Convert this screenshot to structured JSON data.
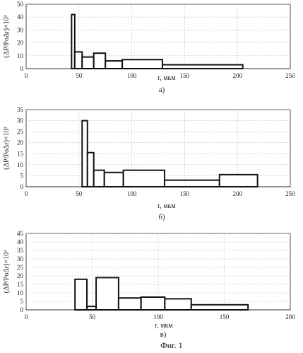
{
  "figure_caption": "Фиг. 1",
  "chart_data": [
    {
      "type": "bar",
      "sublabel": "а)",
      "xlabel": "r, мкм",
      "ylabel": "(ΔP/PoΔr)×10³",
      "xlim": [
        0,
        250
      ],
      "ylim": [
        0,
        50
      ],
      "xticks": [
        0,
        50,
        100,
        150,
        200,
        250
      ],
      "yticks": [
        0,
        10,
        20,
        30,
        40,
        50
      ],
      "grid": true,
      "xlabel_inside": true,
      "bins": [
        {
          "x0": 43,
          "x1": 46,
          "value": 42
        },
        {
          "x0": 46,
          "x1": 53,
          "value": 13
        },
        {
          "x0": 53,
          "x1": 64,
          "value": 9
        },
        {
          "x0": 64,
          "x1": 75,
          "value": 12
        },
        {
          "x0": 75,
          "x1": 91,
          "value": 6
        },
        {
          "x0": 91,
          "x1": 129,
          "value": 7
        },
        {
          "x0": 129,
          "x1": 205,
          "value": 3
        }
      ]
    },
    {
      "type": "bar",
      "sublabel": "б)",
      "xlabel": "r, мкм",
      "ylabel": "(ΔP/PoΔr)×10³",
      "xlim": [
        0,
        250
      ],
      "ylim": [
        0,
        35
      ],
      "xticks": [
        0,
        50,
        100,
        150,
        200,
        250
      ],
      "yticks": [
        0,
        5,
        10,
        15,
        20,
        25,
        30,
        35
      ],
      "grid": true,
      "xlabel_inside": false,
      "bins": [
        {
          "x0": 53,
          "x1": 58,
          "value": 30
        },
        {
          "x0": 58,
          "x1": 64,
          "value": 15.5
        },
        {
          "x0": 64,
          "x1": 74,
          "value": 7.5
        },
        {
          "x0": 74,
          "x1": 92,
          "value": 6.5
        },
        {
          "x0": 92,
          "x1": 131,
          "value": 7.5
        },
        {
          "x0": 131,
          "x1": 183,
          "value": 3
        },
        {
          "x0": 183,
          "x1": 219,
          "value": 5.5
        }
      ]
    },
    {
      "type": "bar",
      "sublabel": "в)",
      "xlabel": "r, мкм",
      "ylabel": "(ΔP/PoΔr)×10³",
      "xlim": [
        0,
        200
      ],
      "ylim": [
        0,
        45
      ],
      "xticks": [
        0,
        50,
        100,
        150,
        200
      ],
      "yticks": [
        0,
        5,
        10,
        15,
        20,
        25,
        30,
        35,
        40,
        45
      ],
      "grid": true,
      "xlabel_inside": false,
      "bins": [
        {
          "x0": 37,
          "x1": 46,
          "value": 18
        },
        {
          "x0": 46,
          "x1": 53,
          "value": 2
        },
        {
          "x0": 53,
          "x1": 70,
          "value": 19
        },
        {
          "x0": 70,
          "x1": 87,
          "value": 7
        },
        {
          "x0": 87,
          "x1": 105,
          "value": 7.5
        },
        {
          "x0": 105,
          "x1": 125,
          "value": 6.5
        },
        {
          "x0": 125,
          "x1": 168,
          "value": 3
        }
      ]
    }
  ]
}
